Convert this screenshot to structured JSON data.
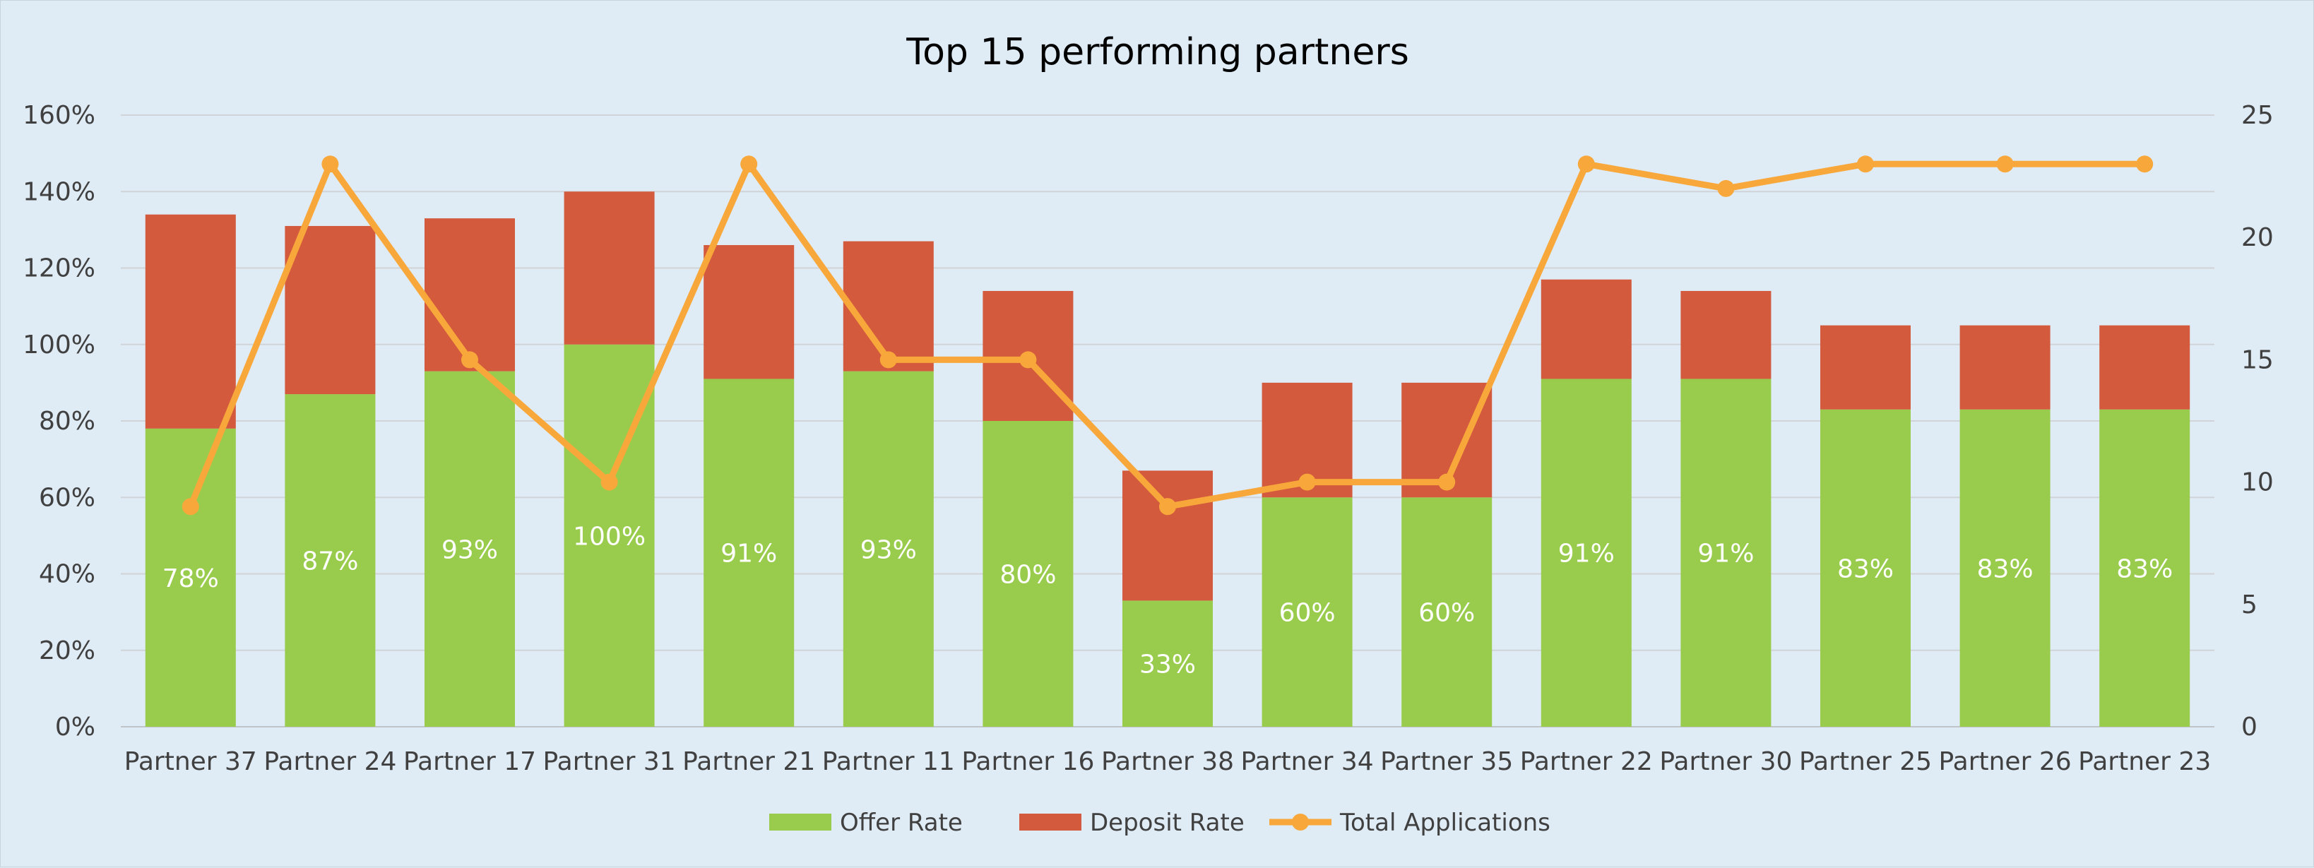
{
  "chart_data": {
    "type": "bar",
    "stacked": true,
    "title": "Top 15 performing partners",
    "categories": [
      "Partner 37",
      "Partner 24",
      "Partner 17",
      "Partner 31",
      "Partner 21",
      "Partner 11",
      "Partner 16",
      "Partner 38",
      "Partner 34",
      "Partner 35",
      "Partner 22",
      "Partner 30",
      "Partner 25",
      "Partner 26",
      "Partner 23"
    ],
    "series": [
      {
        "name": "Offer Rate",
        "type": "bar",
        "axis": "left",
        "color": "#99cc4d",
        "values": [
          78,
          87,
          93,
          100,
          91,
          93,
          80,
          33,
          60,
          60,
          91,
          91,
          83,
          83,
          83
        ],
        "data_labels": [
          "78%",
          "87%",
          "93%",
          "100%",
          "91%",
          "93%",
          "80%",
          "33%",
          "60%",
          "60%",
          "91%",
          "91%",
          "83%",
          "83%",
          "83%"
        ]
      },
      {
        "name": "Deposit Rate",
        "type": "bar",
        "axis": "left",
        "color": "#d35a3c",
        "values": [
          56,
          44,
          40,
          40,
          35,
          34,
          34,
          34,
          30,
          30,
          26,
          23,
          22,
          22,
          22
        ]
      },
      {
        "name": "Total Applications",
        "type": "line",
        "axis": "right",
        "color": "#f8a83b",
        "values": [
          9,
          23,
          15,
          10,
          23,
          15,
          15,
          9,
          10,
          10,
          23,
          22,
          23,
          23,
          23
        ]
      }
    ],
    "y_left": {
      "ylim": [
        0,
        160
      ],
      "ticks": [
        "0%",
        "20%",
        "40%",
        "60%",
        "80%",
        "100%",
        "120%",
        "140%",
        "160%"
      ]
    },
    "y_right": {
      "ylim": [
        0,
        25
      ],
      "ticks": [
        "0",
        "5",
        "10",
        "15",
        "20",
        "25"
      ]
    },
    "grid": true,
    "legend_position": "bottom",
    "colors": {
      "background": "#dfebf5",
      "grid": "#d0d4d8",
      "axis_text": "#404040"
    }
  }
}
